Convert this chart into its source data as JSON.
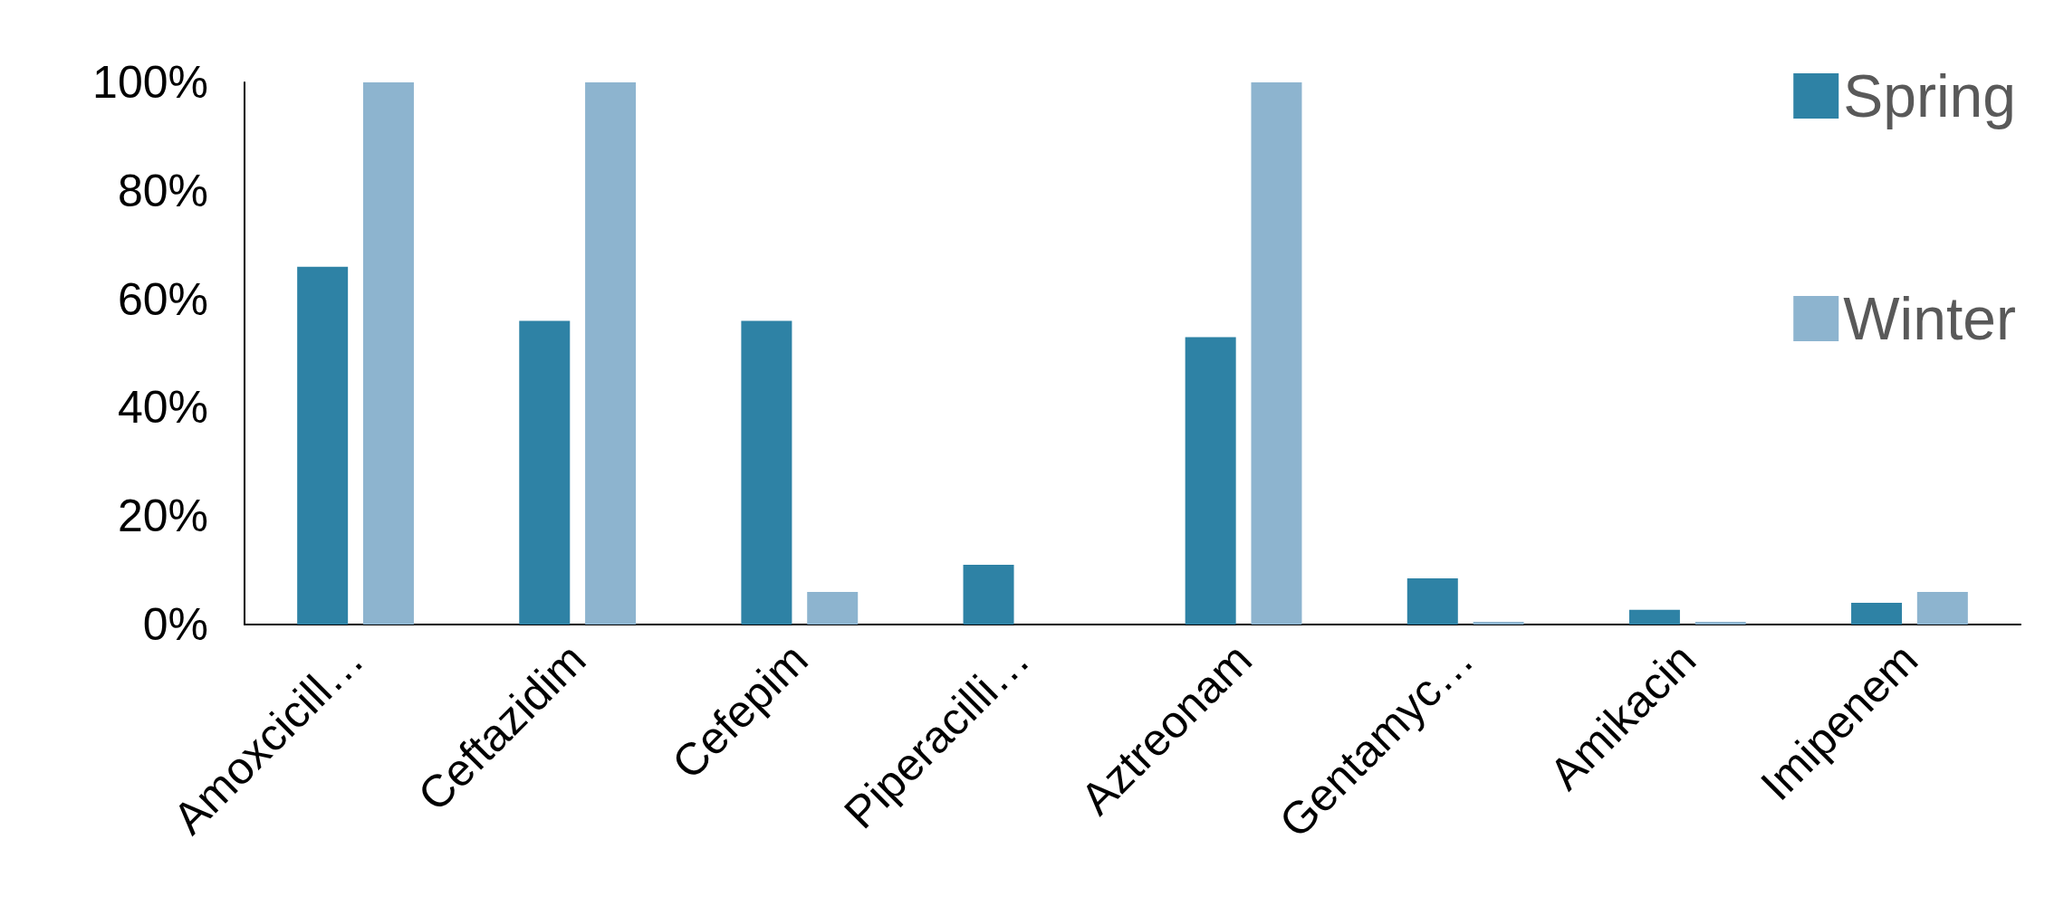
{
  "chart_data": {
    "type": "bar",
    "categories": [
      "Amoxcicill…",
      "Ceftazidim",
      "Cefepim",
      "Piperacilli…",
      "Aztreonam",
      "Gentamyc…",
      "Amikacin",
      "Imipenem"
    ],
    "series": [
      {
        "name": "Spring",
        "color": "#2e82a5",
        "values": [
          66,
          56,
          56,
          11,
          53,
          8.5,
          2.7,
          4
        ]
      },
      {
        "name": "Winter",
        "color": "#8db4cf",
        "values": [
          100,
          100,
          6,
          0,
          100,
          0.5,
          0.5,
          6
        ]
      }
    ],
    "ylim": [
      0,
      100
    ],
    "yticks": [
      {
        "value": 0,
        "label": "0%"
      },
      {
        "value": 20,
        "label": "20%"
      },
      {
        "value": 40,
        "label": "40%"
      },
      {
        "value": 60,
        "label": "60%"
      },
      {
        "value": 80,
        "label": "80%"
      },
      {
        "value": 100,
        "label": "100%"
      }
    ],
    "grid": false,
    "legend": "top right"
  }
}
